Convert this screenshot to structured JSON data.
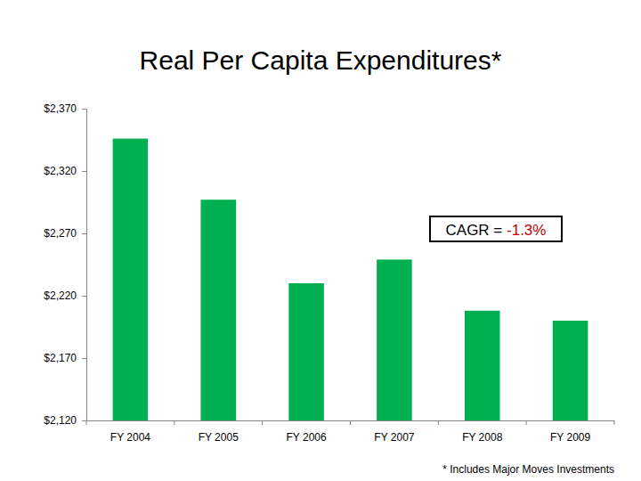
{
  "chart_data": {
    "type": "bar",
    "title": "Real Per Capita Expenditures*",
    "categories": [
      "FY 2004",
      "FY 2005",
      "FY 2006",
      "FY 2007",
      "FY 2008",
      "FY 2009"
    ],
    "values": [
      2346,
      2297,
      2230,
      2249,
      2208,
      2200
    ],
    "color": "#00b050",
    "ylim": [
      2120,
      2370
    ],
    "yticks": [
      {
        "value": 2120,
        "label": "$2,120"
      },
      {
        "value": 2170,
        "label": "$2,170"
      },
      {
        "value": 2220,
        "label": "$2,220"
      },
      {
        "value": 2270,
        "label": "$2,270"
      },
      {
        "value": 2320,
        "label": "$2,320"
      },
      {
        "value": 2370,
        "label": "$2,370"
      }
    ],
    "grid": false,
    "annotations": [
      {
        "label": "CAGR = ",
        "value": "-1.3%"
      }
    ],
    "footnote": "* Includes Major Moves Investments"
  }
}
